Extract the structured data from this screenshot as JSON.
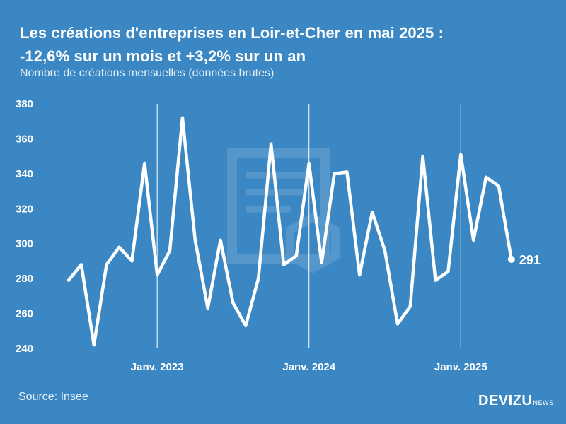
{
  "chart_data": {
    "type": "line",
    "title_line1": "Les créations d'entreprises en Loir-et-Cher en mai 2025 :",
    "title_line2": "-12,6% sur un mois et +3,2% sur un an",
    "subtitle": "Nombre de créations mensuelles (données brutes)",
    "ylim": [
      240,
      380
    ],
    "yticks": [
      380,
      360,
      340,
      320,
      300,
      280,
      260,
      240
    ],
    "x_start_month_index": 0,
    "x_ticks": [
      {
        "label": "Janv. 2023",
        "month_index": 7
      },
      {
        "label": "Janv. 2024",
        "month_index": 19
      },
      {
        "label": "Janv. 2025",
        "month_index": 31
      }
    ],
    "values": [
      279,
      288,
      242,
      288,
      298,
      290,
      346,
      282,
      296,
      372,
      302,
      263,
      302,
      266,
      253,
      280,
      357,
      288,
      293,
      346,
      289,
      340,
      341,
      282,
      318,
      296,
      254,
      264,
      350,
      279,
      284,
      351,
      302,
      338,
      333,
      291
    ],
    "last_value_label": "291",
    "grid": "vertical lines at January",
    "color": "#ffffff",
    "background": "#3b87c4"
  },
  "footer": {
    "source": "Source: Insee",
    "brand": "DEVIZU",
    "brand_suffix": "NEWS"
  }
}
